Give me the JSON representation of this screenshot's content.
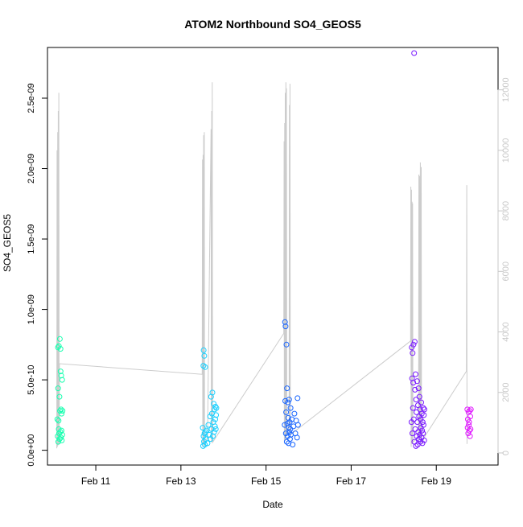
{
  "chart_data": {
    "type": "scatter",
    "title": "ATOM2 Northbound SO4_GEOS5",
    "xlabel": "Date",
    "ylabel": "SO4_GEOS5",
    "x_ticks": [
      "Feb 11",
      "Feb 13",
      "Feb 15",
      "Feb 17",
      "Feb 19"
    ],
    "x_tick_dates": [
      "2017-02-11",
      "2017-02-13",
      "2017-02-15",
      "2017-02-17",
      "2017-02-19"
    ],
    "xlim": [
      "2017-02-09T20:45",
      "2017-02-20T10:50"
    ],
    "y_ticks": [
      {
        "v": 0,
        "label": "0.0e+00"
      },
      {
        "v": 5e-10,
        "label": "5.0e-10"
      },
      {
        "v": 1e-09,
        "label": "1.0e-09"
      },
      {
        "v": 1.5e-09,
        "label": "1.5e-09"
      },
      {
        "v": 2e-09,
        "label": "2.0e-09"
      },
      {
        "v": 2.5e-09,
        "label": "2.5e-09"
      }
    ],
    "ylim": [
      -1.05e-10,
      2.86e-09
    ],
    "y2_ticks": [
      {
        "v": 0,
        "label": "0"
      },
      {
        "v": 2000,
        "label": "2000"
      },
      {
        "v": 4000,
        "label": "4000"
      },
      {
        "v": 6000,
        "label": "6000"
      },
      {
        "v": 8000,
        "label": "8000"
      },
      {
        "v": 10000,
        "label": "10000"
      },
      {
        "v": 12000,
        "label": "12000"
      }
    ],
    "y2lim": [
      -400,
      13400
    ],
    "grid": false,
    "line_color": "#cccccc",
    "y2_axis_color": "#c8c8c8",
    "series": [
      {
        "color": "#19ffb0",
        "points": [
          [
            "2017-02-10T02:20",
            2.2e-10
          ],
          [
            "2017-02-10T02:30",
            1e-10
          ],
          [
            "2017-02-10T02:40",
            7.3e-10
          ],
          [
            "2017-02-10T02:45",
            4.4e-10
          ],
          [
            "2017-02-10T02:50",
            6e-11
          ],
          [
            "2017-02-10T03:00",
            2.1e-10
          ],
          [
            "2017-02-10T03:05",
            1.5e-10
          ],
          [
            "2017-02-10T03:10",
            7.4e-10
          ],
          [
            "2017-02-10T03:20",
            1.2e-10
          ],
          [
            "2017-02-10T03:30",
            3.8e-10
          ],
          [
            "2017-02-10T03:35",
            8e-11
          ],
          [
            "2017-02-10T03:45",
            7.9e-10
          ],
          [
            "2017-02-10T03:50",
            2.8e-10
          ],
          [
            "2017-02-10T04:00",
            1.3e-10
          ],
          [
            "2017-02-10T04:05",
            7.2e-10
          ],
          [
            "2017-02-10T04:10",
            5.6e-10
          ],
          [
            "2017-02-10T04:20",
            9e-11
          ],
          [
            "2017-02-10T04:25",
            2.9e-10
          ],
          [
            "2017-02-10T04:30",
            5.3e-10
          ],
          [
            "2017-02-10T04:40",
            1.4e-10
          ],
          [
            "2017-02-10T04:45",
            2.6e-10
          ],
          [
            "2017-02-10T04:50",
            7e-11
          ],
          [
            "2017-02-10T05:00",
            5e-10
          ],
          [
            "2017-02-10T05:05",
            1.1e-10
          ],
          [
            "2017-02-10T05:15",
            2.8e-10
          ]
        ]
      },
      {
        "color": "#1ad0ff",
        "points": [
          [
            "2017-02-13T12:20",
            1.6e-10
          ],
          [
            "2017-02-13T12:30",
            3e-11
          ],
          [
            "2017-02-13T12:40",
            6e-10
          ],
          [
            "2017-02-13T12:45",
            1e-10
          ],
          [
            "2017-02-13T12:50",
            7.1e-10
          ],
          [
            "2017-02-13T13:00",
            6.2e-11
          ],
          [
            "2017-02-13T13:10",
            6.7e-10
          ],
          [
            "2017-02-13T13:20",
            1.2e-10
          ],
          [
            "2017-02-13T13:30",
            4e-11
          ],
          [
            "2017-02-13T13:40",
            5.9e-10
          ],
          [
            "2017-02-13T13:50",
            1.3e-10
          ],
          [
            "2017-02-13T14:00",
            8e-11
          ],
          [
            "2017-02-13T14:30",
            1.4e-10
          ],
          [
            "2017-02-13T15:00",
            5e-11
          ],
          [
            "2017-02-13T15:30",
            1.8e-10
          ],
          [
            "2017-02-13T16:00",
            1.1e-10
          ],
          [
            "2017-02-13T16:30",
            2.4e-10
          ],
          [
            "2017-02-13T16:45",
            8e-11
          ],
          [
            "2017-02-13T17:00",
            3.8e-10
          ],
          [
            "2017-02-13T17:15",
            1.5e-10
          ],
          [
            "2017-02-13T17:30",
            2.6e-10
          ],
          [
            "2017-02-13T17:45",
            4.1e-10
          ],
          [
            "2017-02-13T18:00",
            1e-10
          ],
          [
            "2017-02-13T18:15",
            2e-10
          ],
          [
            "2017-02-13T18:30",
            3.3e-10
          ],
          [
            "2017-02-13T18:45",
            1.3e-10
          ],
          [
            "2017-02-13T19:00",
            2.9e-10
          ],
          [
            "2017-02-13T19:10",
            1.7e-10
          ],
          [
            "2017-02-13T19:20",
            2.2e-10
          ],
          [
            "2017-02-13T19:30",
            3.1e-10
          ],
          [
            "2017-02-13T19:40",
            1.5e-10
          ],
          [
            "2017-02-13T19:50",
            2.5e-10
          ],
          [
            "2017-02-13T20:00",
            3e-10
          ]
        ]
      },
      {
        "color": "#1a66ff",
        "points": [
          [
            "2017-02-15T10:30",
            1.8e-10
          ],
          [
            "2017-02-15T10:40",
            9.1e-10
          ],
          [
            "2017-02-15T10:50",
            3.5e-10
          ],
          [
            "2017-02-15T11:00",
            8.8e-10
          ],
          [
            "2017-02-15T11:10",
            1.2e-10
          ],
          [
            "2017-02-15T11:20",
            2.7e-10
          ],
          [
            "2017-02-15T11:30",
            7.5e-10
          ],
          [
            "2017-02-15T11:40",
            6e-11
          ],
          [
            "2017-02-15T11:50",
            4.4e-10
          ],
          [
            "2017-02-15T12:00",
            1.9e-10
          ],
          [
            "2017-02-15T12:10",
            1e-10
          ],
          [
            "2017-02-15T12:20",
            3.4e-10
          ],
          [
            "2017-02-15T12:30",
            2.3e-10
          ],
          [
            "2017-02-15T12:40",
            5e-11
          ],
          [
            "2017-02-15T12:50",
            1.6e-10
          ],
          [
            "2017-02-15T13:00",
            3.6e-10
          ],
          [
            "2017-02-15T13:10",
            1.3e-10
          ],
          [
            "2017-02-15T13:20",
            2e-10
          ],
          [
            "2017-02-15T13:30",
            8e-11
          ],
          [
            "2017-02-15T13:40",
            1.5e-10
          ],
          [
            "2017-02-15T13:50",
            3e-10
          ],
          [
            "2017-02-15T14:00",
            1.1e-10
          ],
          [
            "2017-02-15T14:30",
            2.2e-10
          ],
          [
            "2017-02-15T15:00",
            4e-11
          ],
          [
            "2017-02-15T15:30",
            1.7e-10
          ],
          [
            "2017-02-15T16:00",
            2.6e-10
          ],
          [
            "2017-02-15T16:30",
            1.2e-10
          ],
          [
            "2017-02-15T17:00",
            2.1e-10
          ],
          [
            "2017-02-15T17:30",
            9e-11
          ],
          [
            "2017-02-15T17:45",
            3.7e-10
          ],
          [
            "2017-02-15T18:00",
            1.8e-10
          ]
        ]
      },
      {
        "color": "#7a1aff",
        "points": [
          [
            "2017-02-18T10:00",
            2e-10
          ],
          [
            "2017-02-18T10:10",
            7.3e-10
          ],
          [
            "2017-02-18T10:20",
            5.1e-10
          ],
          [
            "2017-02-18T10:30",
            1.2e-10
          ],
          [
            "2017-02-18T10:40",
            6.9e-10
          ],
          [
            "2017-02-18T10:50",
            3e-10
          ],
          [
            "2017-02-18T11:00",
            4.8e-10
          ],
          [
            "2017-02-18T11:10",
            7.5e-10
          ],
          [
            "2017-02-18T11:20",
            2.2e-10
          ],
          [
            "2017-02-18T11:30",
            2.82e-09
          ],
          [
            "2017-02-18T11:40",
            6e-11
          ],
          [
            "2017-02-18T11:50",
            7.7e-10
          ],
          [
            "2017-02-18T12:00",
            4.3e-10
          ],
          [
            "2017-02-18T12:10",
            1.5e-10
          ],
          [
            "2017-02-18T12:20",
            5.4e-10
          ],
          [
            "2017-02-18T12:30",
            3e-11
          ],
          [
            "2017-02-18T12:40",
            3.6e-10
          ],
          [
            "2017-02-18T12:50",
            2.7e-10
          ],
          [
            "2017-02-18T13:00",
            1e-10
          ],
          [
            "2017-02-18T13:10",
            4.9e-10
          ],
          [
            "2017-02-18T13:20",
            2e-10
          ],
          [
            "2017-02-18T13:30",
            4e-11
          ],
          [
            "2017-02-18T13:40",
            3.2e-10
          ],
          [
            "2017-02-18T13:50",
            1.3e-10
          ],
          [
            "2017-02-18T14:00",
            4.4e-10
          ],
          [
            "2017-02-18T14:10",
            8e-11
          ],
          [
            "2017-02-18T14:20",
            2.4e-10
          ],
          [
            "2017-02-18T14:30",
            3.8e-10
          ],
          [
            "2017-02-18T14:40",
            1.1e-10
          ],
          [
            "2017-02-18T14:50",
            2.9e-10
          ],
          [
            "2017-02-18T15:00",
            6e-11
          ],
          [
            "2017-02-18T15:10",
            2.2e-10
          ],
          [
            "2017-02-18T15:20",
            1.6e-10
          ],
          [
            "2017-02-18T15:30",
            3.4e-10
          ],
          [
            "2017-02-18T15:40",
            9e-11
          ],
          [
            "2017-02-18T15:50",
            2.6e-10
          ],
          [
            "2017-02-18T16:00",
            1.4e-10
          ],
          [
            "2017-02-18T16:10",
            5e-11
          ],
          [
            "2017-02-18T16:20",
            2e-10
          ],
          [
            "2017-02-18T16:30",
            1.2e-10
          ],
          [
            "2017-02-18T16:40",
            3e-10
          ],
          [
            "2017-02-18T16:50",
            1.8e-10
          ],
          [
            "2017-02-18T17:00",
            2.5e-10
          ],
          [
            "2017-02-18T17:10",
            7e-11
          ],
          [
            "2017-02-18T17:20",
            2.9e-10
          ]
        ]
      },
      {
        "color": "#e01aff",
        "points": [
          [
            "2017-02-19T17:30",
            2.9e-10
          ],
          [
            "2017-02-19T17:40",
            1.6e-10
          ],
          [
            "2017-02-19T17:50",
            2.2e-10
          ],
          [
            "2017-02-19T18:00",
            1.2e-10
          ],
          [
            "2017-02-19T18:10",
            2.7e-10
          ],
          [
            "2017-02-19T18:20",
            1.8e-10
          ],
          [
            "2017-02-19T18:30",
            2e-10
          ],
          [
            "2017-02-19T18:40",
            1.4e-10
          ],
          [
            "2017-02-19T18:50",
            2.8e-10
          ],
          [
            "2017-02-19T19:00",
            1e-10
          ],
          [
            "2017-02-19T19:10",
            2.4e-10
          ],
          [
            "2017-02-19T19:20",
            1.5e-10
          ],
          [
            "2017-02-19T19:30",
            2.9e-10
          ]
        ]
      }
    ],
    "altitude_line": [
      [
        "2017-02-10T02:00",
        150
      ],
      [
        "2017-02-10T02:10",
        10000
      ],
      [
        "2017-02-10T02:20",
        200
      ],
      [
        "2017-02-10T02:30",
        10600
      ],
      [
        "2017-02-10T02:40",
        250
      ],
      [
        "2017-02-10T02:50",
        11300
      ],
      [
        "2017-02-10T03:00",
        300
      ],
      [
        "2017-02-10T03:10",
        11900
      ],
      [
        "2017-02-10T03:20",
        300
      ],
      [
        "2017-02-10T03:30",
        2950
      ],
      [
        "2017-02-13T12:00",
        2600
      ],
      [
        "2017-02-13T12:10",
        9700
      ],
      [
        "2017-02-13T12:20",
        200
      ],
      [
        "2017-02-13T12:30",
        9850
      ],
      [
        "2017-02-13T12:40",
        300
      ],
      [
        "2017-02-13T12:50",
        10500
      ],
      [
        "2017-02-13T13:00",
        250
      ],
      [
        "2017-02-13T13:10",
        10600
      ],
      [
        "2017-02-13T13:20",
        200
      ],
      [
        "2017-02-13T13:30",
        350
      ],
      [
        "2017-02-13T15:00",
        500
      ],
      [
        "2017-02-13T17:00",
        10700
      ],
      [
        "2017-02-13T17:10",
        350
      ],
      [
        "2017-02-13T17:20",
        11300
      ],
      [
        "2017-02-13T17:30",
        450
      ],
      [
        "2017-02-13T17:40",
        12250
      ],
      [
        "2017-02-13T17:50",
        350
      ],
      [
        "2017-02-15T10:00",
        3950
      ],
      [
        "2017-02-15T10:10",
        10300
      ],
      [
        "2017-02-15T10:20",
        400
      ],
      [
        "2017-02-15T10:30",
        10900
      ],
      [
        "2017-02-15T10:40",
        400
      ],
      [
        "2017-02-15T10:50",
        11900
      ],
      [
        "2017-02-15T11:00",
        450
      ],
      [
        "2017-02-15T11:10",
        12250
      ],
      [
        "2017-02-15T11:20",
        450
      ],
      [
        "2017-02-15T11:30",
        12050
      ],
      [
        "2017-02-15T11:40",
        600
      ],
      [
        "2017-02-15T13:00",
        1000
      ],
      [
        "2017-02-15T13:10",
        11500
      ],
      [
        "2017-02-15T13:20",
        600
      ],
      [
        "2017-02-15T13:30",
        12200
      ],
      [
        "2017-02-15T13:40",
        600
      ],
      [
        "2017-02-18T09:30",
        3700
      ],
      [
        "2017-02-18T09:40",
        8800
      ],
      [
        "2017-02-18T09:50",
        200
      ],
      [
        "2017-02-18T10:00",
        8700
      ],
      [
        "2017-02-18T10:10",
        300
      ],
      [
        "2017-02-18T10:20",
        8300
      ],
      [
        "2017-02-18T10:30",
        300
      ],
      [
        "2017-02-18T10:40",
        8250
      ],
      [
        "2017-02-18T10:50",
        350
      ],
      [
        "2017-02-18T14:00",
        550
      ],
      [
        "2017-02-18T14:10",
        9200
      ],
      [
        "2017-02-18T14:20",
        500
      ],
      [
        "2017-02-18T14:30",
        9150
      ],
      [
        "2017-02-18T14:40",
        500
      ],
      [
        "2017-02-18T15:00",
        9600
      ],
      [
        "2017-02-18T15:10",
        450
      ],
      [
        "2017-02-18T15:30",
        9450
      ],
      [
        "2017-02-18T15:40",
        300
      ],
      [
        "2017-02-18T17:00",
        500
      ],
      [
        "2017-02-19T17:00",
        2700
      ],
      [
        "2017-02-19T17:10",
        8850
      ],
      [
        "2017-02-19T17:20",
        300
      ]
    ]
  }
}
